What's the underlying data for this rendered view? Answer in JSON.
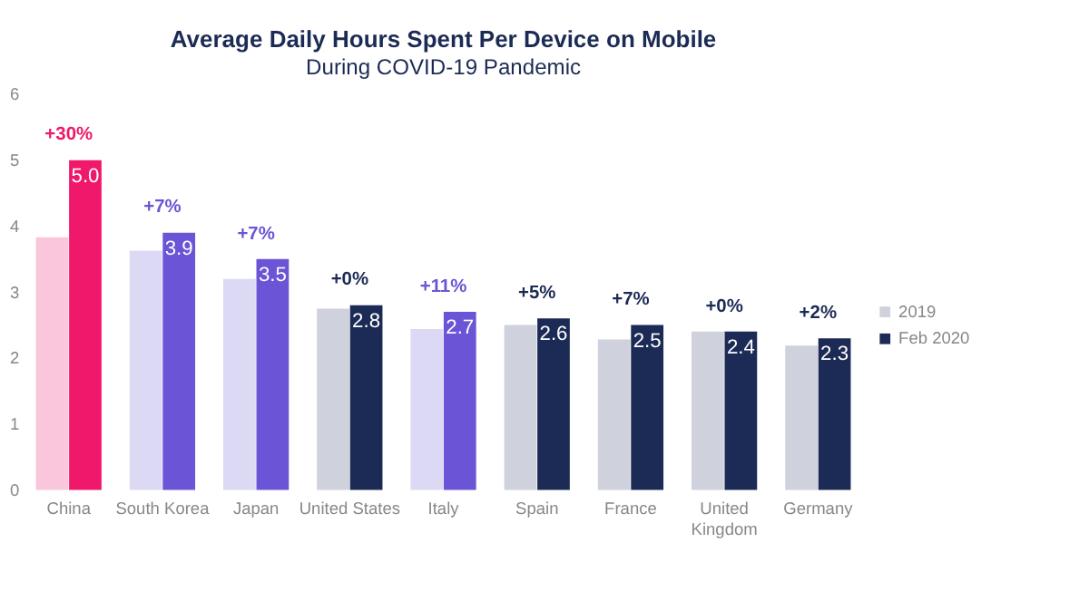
{
  "chart_data": {
    "type": "bar",
    "title": "Average Daily Hours Spent Per Device on Mobile",
    "subtitle": "During COVID-19 Pandemic",
    "categories": [
      "China",
      "South Korea",
      "Japan",
      "United States",
      "Italy",
      "Spain",
      "France",
      "United Kingdom",
      "Germany"
    ],
    "series": [
      {
        "name": "2019",
        "color": "#cfd2dc",
        "colors": [
          "#f9c6dc",
          "#dcd9f5",
          "#dcd9f5",
          "#cfd2dc",
          "#dcd9f5",
          "#cfd2dc",
          "#cfd2dc",
          "#cfd2dc",
          "#cfd2dc"
        ],
        "values": [
          3.83,
          3.63,
          3.2,
          2.75,
          2.44,
          2.5,
          2.28,
          2.4,
          2.19
        ]
      },
      {
        "name": "Feb 2020",
        "color": "#1c2b55",
        "colors": [
          "#f0186a",
          "#6b55d6",
          "#6b55d6",
          "#1c2b55",
          "#6b55d6",
          "#1c2b55",
          "#1c2b55",
          "#1c2b55",
          "#1c2b55"
        ],
        "values": [
          5.0,
          3.9,
          3.5,
          2.8,
          2.7,
          2.6,
          2.5,
          2.4,
          2.3
        ],
        "value_labels": [
          "5.0",
          "3.9",
          "3.5",
          "2.8",
          "2.7",
          "2.6",
          "2.5",
          "2.4",
          "2.3"
        ]
      }
    ],
    "annotations": [
      "+30%",
      "+7%",
      "+7%",
      "+0%",
      "+11%",
      "+5%",
      "+7%",
      "+0%",
      "+2%"
    ],
    "ylim": [
      0,
      6
    ],
    "yticks": [
      0,
      1,
      2,
      3,
      4,
      5,
      6
    ],
    "grid": false,
    "legend": "right"
  }
}
